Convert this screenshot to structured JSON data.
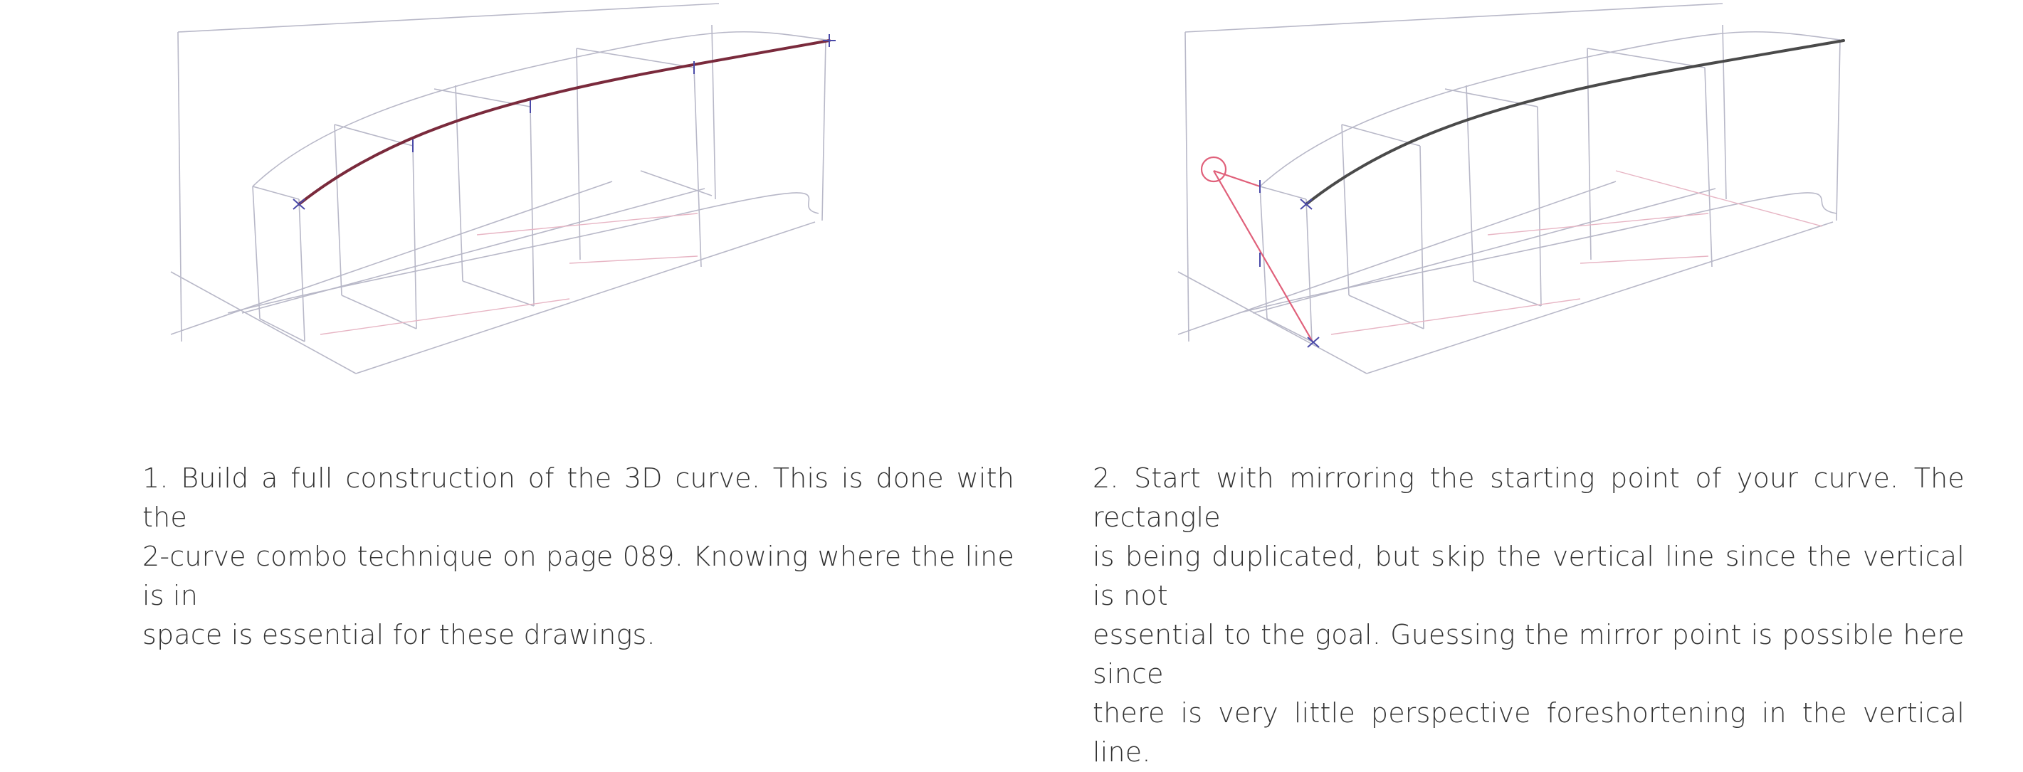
{
  "steps": [
    {
      "lines": [
        "1. Build a full construction of the 3D curve. This is done with the",
        "2-curve combo technique on page 089. Knowing where the line is in",
        "space is essential for these drawings."
      ]
    },
    {
      "lines": [
        "2. Start with mirroring the starting point of your curve. The rectangle",
        "is being duplicated, but skip the vertical line since the vertical is not",
        "essential to the goal. Guessing the mirror point is possible here since",
        "there is very little perspective foreshortening in the vertical line."
      ]
    }
  ],
  "colors": {
    "construction_line": "#b8b8c8",
    "construction_pink": "#e7b5c4",
    "curve_step1": "#7a2a3c",
    "curve_step2": "#4a4a4a",
    "mirror_mark": "#e0607a",
    "marker_blue": "#4a4aa8"
  }
}
